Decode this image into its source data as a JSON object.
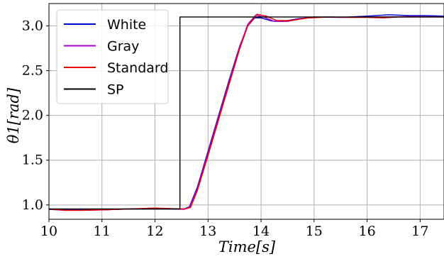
{
  "chart_data": {
    "type": "line",
    "title": "",
    "xlabel": "Time[s]",
    "ylabel": "θ1[rad]",
    "xlim": [
      10,
      17.45
    ],
    "ylim": [
      0.84,
      3.25
    ],
    "xticks": [
      10,
      11,
      12,
      13,
      14,
      15,
      16,
      17
    ],
    "xtick_labels": [
      "10",
      "11",
      "12",
      "13",
      "14",
      "15",
      "16",
      "17"
    ],
    "yticks": [
      1.0,
      1.5,
      2.0,
      2.5,
      3.0
    ],
    "ytick_labels": [
      "1.0",
      "1.5",
      "2.0",
      "2.5",
      "3.0"
    ],
    "grid": true,
    "legend_position": "top-left",
    "series": [
      {
        "name": "White",
        "color": "#0000cc",
        "points": [
          [
            10.0,
            0.95
          ],
          [
            10.3,
            0.945
          ],
          [
            10.6,
            0.945
          ],
          [
            11.0,
            0.945
          ],
          [
            11.5,
            0.955
          ],
          [
            12.0,
            0.955
          ],
          [
            12.3,
            0.955
          ],
          [
            12.55,
            0.955
          ],
          [
            12.65,
            0.98
          ],
          [
            12.8,
            1.2
          ],
          [
            13.0,
            1.6
          ],
          [
            13.2,
            2.0
          ],
          [
            13.4,
            2.4
          ],
          [
            13.6,
            2.78
          ],
          [
            13.75,
            3.0
          ],
          [
            13.88,
            3.09
          ],
          [
            14.0,
            3.09
          ],
          [
            14.2,
            3.055
          ],
          [
            14.4,
            3.05
          ],
          [
            14.7,
            3.08
          ],
          [
            15.0,
            3.1
          ],
          [
            15.5,
            3.095
          ],
          [
            16.0,
            3.11
          ],
          [
            16.4,
            3.125
          ],
          [
            16.8,
            3.115
          ],
          [
            17.1,
            3.115
          ],
          [
            17.45,
            3.11
          ]
        ]
      },
      {
        "name": "Gray",
        "color": "#aa00cc",
        "points": [
          [
            10.0,
            0.95
          ],
          [
            10.3,
            0.94
          ],
          [
            10.6,
            0.94
          ],
          [
            11.0,
            0.945
          ],
          [
            11.5,
            0.955
          ],
          [
            12.0,
            0.96
          ],
          [
            12.3,
            0.955
          ],
          [
            12.55,
            0.95
          ],
          [
            12.65,
            0.97
          ],
          [
            12.8,
            1.18
          ],
          [
            13.0,
            1.58
          ],
          [
            13.2,
            1.98
          ],
          [
            13.4,
            2.38
          ],
          [
            13.6,
            2.77
          ],
          [
            13.75,
            3.02
          ],
          [
            13.9,
            3.12
          ],
          [
            14.05,
            3.1
          ],
          [
            14.25,
            3.05
          ],
          [
            14.5,
            3.05
          ],
          [
            14.8,
            3.085
          ],
          [
            15.2,
            3.1
          ],
          [
            15.6,
            3.095
          ],
          [
            16.0,
            3.1
          ],
          [
            16.4,
            3.1
          ],
          [
            16.8,
            3.105
          ],
          [
            17.45,
            3.1
          ]
        ]
      },
      {
        "name": "Standard",
        "color": "#ee0000",
        "points": [
          [
            10.0,
            0.955
          ],
          [
            10.3,
            0.94
          ],
          [
            10.6,
            0.94
          ],
          [
            11.0,
            0.945
          ],
          [
            11.5,
            0.955
          ],
          [
            12.0,
            0.965
          ],
          [
            12.3,
            0.96
          ],
          [
            12.55,
            0.955
          ],
          [
            12.67,
            0.97
          ],
          [
            12.8,
            1.16
          ],
          [
            13.0,
            1.55
          ],
          [
            13.2,
            1.95
          ],
          [
            13.4,
            2.35
          ],
          [
            13.6,
            2.75
          ],
          [
            13.75,
            3.0
          ],
          [
            13.92,
            3.13
          ],
          [
            14.1,
            3.11
          ],
          [
            14.3,
            3.06
          ],
          [
            14.55,
            3.06
          ],
          [
            14.9,
            3.09
          ],
          [
            15.3,
            3.1
          ],
          [
            15.7,
            3.095
          ],
          [
            16.0,
            3.095
          ],
          [
            16.3,
            3.09
          ],
          [
            16.6,
            3.1
          ],
          [
            17.0,
            3.1
          ],
          [
            17.45,
            3.1
          ]
        ]
      },
      {
        "name": "SP",
        "color": "#000000",
        "points": [
          [
            10.0,
            0.955
          ],
          [
            12.47,
            0.955
          ],
          [
            12.47,
            3.1
          ],
          [
            17.45,
            3.1
          ]
        ]
      }
    ]
  }
}
